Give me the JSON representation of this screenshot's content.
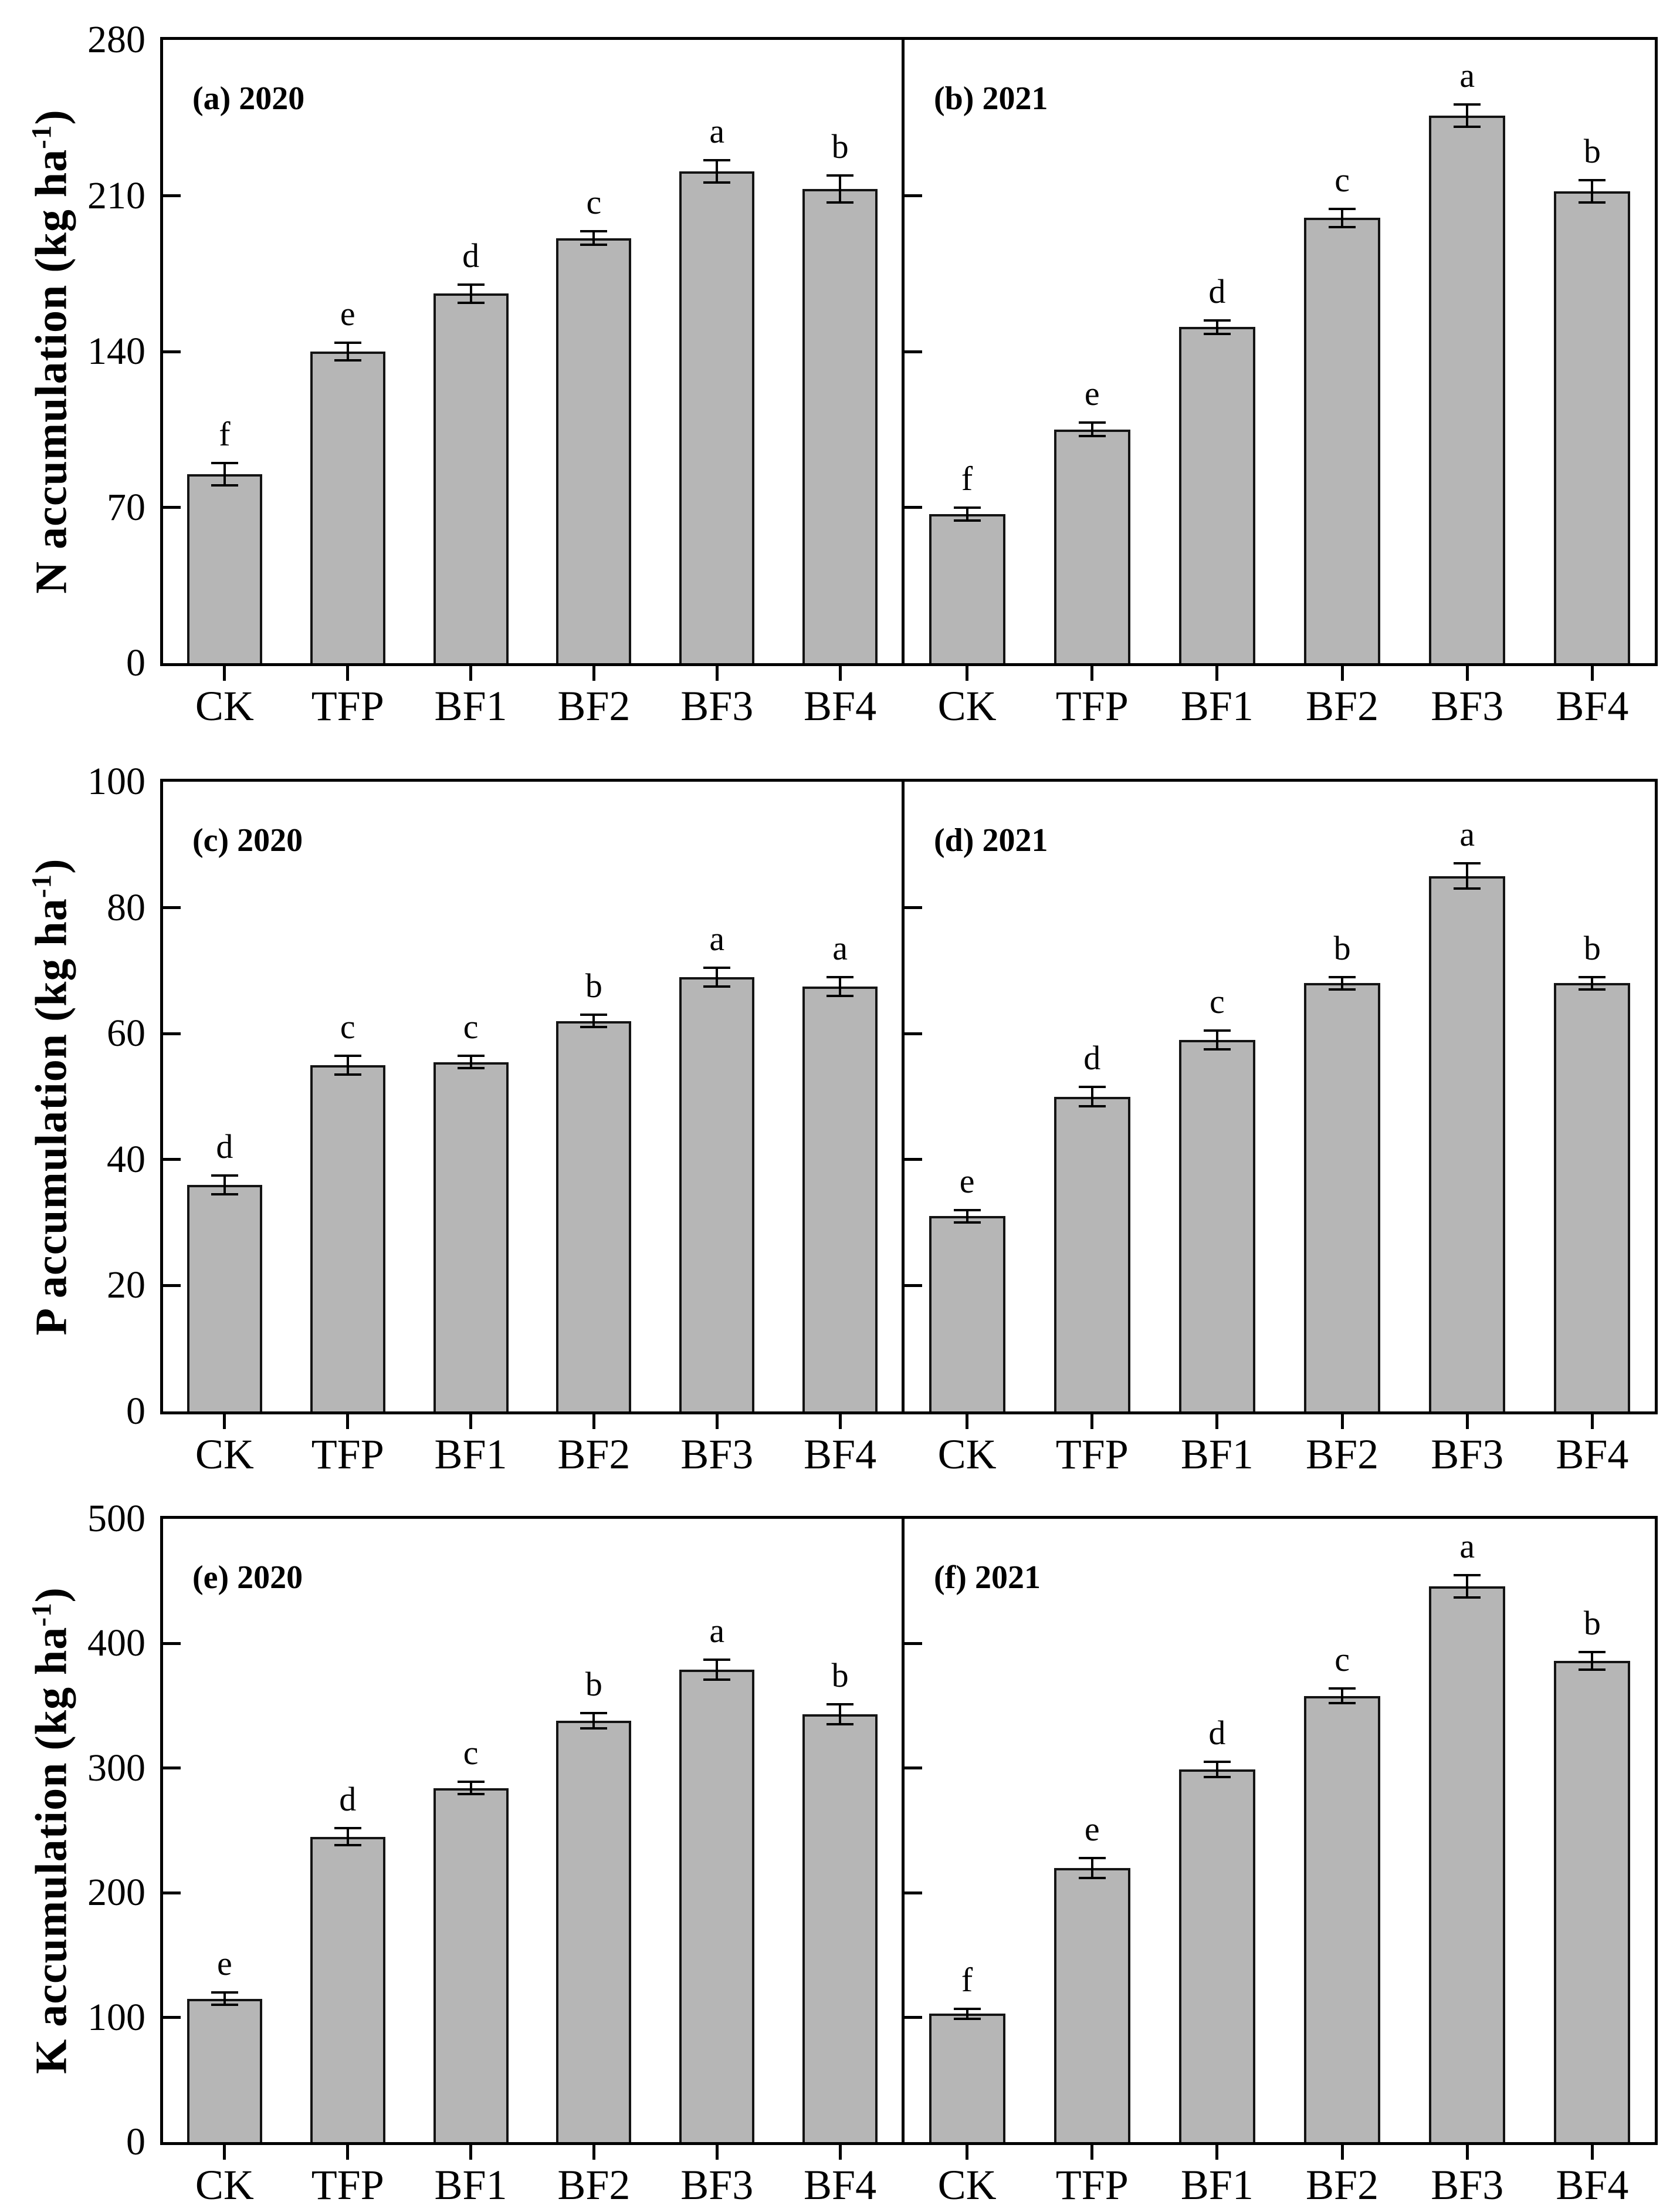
{
  "figure_title": "Nutrient accumulation bar charts (N, P, K) for 2020 and 2021",
  "colors": {
    "background": "#ffffff",
    "bar_fill": "#b6b6b6",
    "bar_edge": "#141414",
    "frame": "#000000",
    "text": "#000000"
  },
  "chart_data": {
    "type": "bar",
    "grid": "off",
    "legend": "none",
    "categories": [
      "CK",
      "TFP",
      "BF1",
      "BF2",
      "BF3",
      "BF4"
    ],
    "rows": [
      {
        "ylabel_pre": "N accumulation (kg ha",
        "ylabel_sup": "-1",
        "ylabel_post": ")",
        "ylim": [
          0,
          280
        ],
        "yticks": [
          0,
          70,
          140,
          210,
          280
        ],
        "panels": [
          {
            "label": "(a) 2020",
            "values": [
              85,
              140,
              166,
              191,
              221,
              213
            ],
            "errors": [
              5,
              4,
              4,
              3,
              5,
              6
            ],
            "letters": [
              "f",
              "e",
              "d",
              "c",
              "a",
              "b"
            ]
          },
          {
            "label": "(b) 2021",
            "values": [
              67,
              105,
              151,
              200,
              246,
              212
            ],
            "errors": [
              3,
              3,
              3,
              4,
              5,
              5
            ],
            "letters": [
              "f",
              "e",
              "d",
              "c",
              "a",
              "b"
            ]
          }
        ]
      },
      {
        "ylabel_pre": "P accumulation (kg ha",
        "ylabel_sup": "-1",
        "ylabel_post": ")",
        "ylim": [
          0,
          100
        ],
        "yticks": [
          0,
          20,
          40,
          60,
          80,
          100
        ],
        "panels": [
          {
            "label": "(c) 2020",
            "values": [
              36,
              55,
              55.5,
              62,
              69,
              67.5
            ],
            "errors": [
              1.5,
              1.5,
              1,
              1,
              1.5,
              1.5
            ],
            "letters": [
              "d",
              "c",
              "c",
              "b",
              "a",
              "a"
            ]
          },
          {
            "label": "(d) 2021",
            "values": [
              31,
              50,
              59,
              68,
              85,
              68
            ],
            "errors": [
              1,
              1.5,
              1.5,
              1,
              2,
              1
            ],
            "letters": [
              "e",
              "d",
              "c",
              "b",
              "a",
              "b"
            ]
          }
        ]
      },
      {
        "ylabel_pre": "K accumulation (kg ha",
        "ylabel_sup": "-1",
        "ylabel_post": ")",
        "ylim": [
          0,
          500
        ],
        "yticks": [
          0,
          100,
          200,
          300,
          400,
          500
        ],
        "panels": [
          {
            "label": "(e) 2020",
            "values": [
              115,
              245,
              284,
              338,
              379,
              343
            ],
            "errors": [
              5,
              7,
              5,
              6,
              8,
              8
            ],
            "letters": [
              "e",
              "d",
              "c",
              "b",
              "a",
              "b"
            ]
          },
          {
            "label": "(f) 2021",
            "values": [
              103,
              220,
              299,
              358,
              446,
              386
            ],
            "errors": [
              4,
              8,
              6,
              6,
              9,
              7
            ],
            "letters": [
              "f",
              "e",
              "d",
              "c",
              "a",
              "b"
            ]
          }
        ]
      }
    ]
  }
}
